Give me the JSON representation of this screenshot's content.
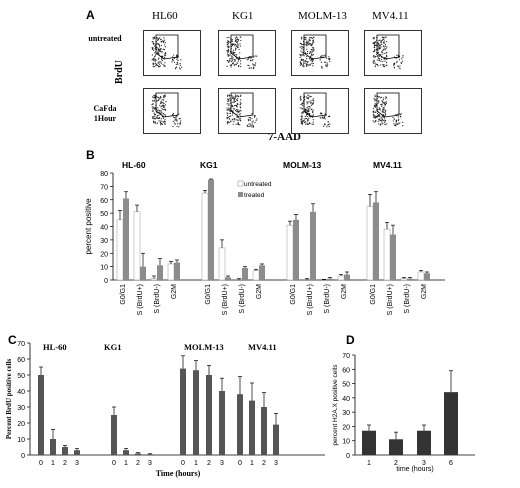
{
  "panelA": {
    "letter": "A",
    "columns": [
      "HL60",
      "KG1",
      "MOLM-13",
      "MV4.11"
    ],
    "rows": [
      [
        "untreated"
      ],
      [
        "CaFda",
        "1Hour"
      ]
    ],
    "ylabel": "BrdU",
    "xlabel": "7-AAD"
  },
  "panelB_letter": "B",
  "panelC_letter": "C",
  "panelD_letter": "D",
  "chart_data": [
    {
      "type": "bar",
      "panel": "B",
      "ylabel": "percent positive",
      "ylim": [
        0,
        80
      ],
      "yticks": [
        0,
        10,
        20,
        30,
        40,
        50,
        60,
        70,
        80
      ],
      "groups": [
        "HL-60",
        "KG1",
        "MOLM-13",
        "MV4.11"
      ],
      "categories": [
        "G0/G1",
        "S (BrdU+)",
        "S (BrdU-)",
        "G2M"
      ],
      "legend": [
        "untreated",
        "treated"
      ],
      "legend_position": "top-center",
      "colors": {
        "untreated": "#ffffff",
        "treated": "#8c8c8c"
      },
      "series": [
        {
          "name": "untreated",
          "values": [
            [
              45,
              51,
              1,
              12
            ],
            [
              65,
              24,
              0,
              7
            ],
            [
              41,
              0,
              0,
              3
            ],
            [
              55,
              38,
              1,
              6
            ]
          ],
          "errors": [
            [
              7,
              5,
              2,
              2
            ],
            [
              2,
              6,
              1,
              1
            ],
            [
              3,
              1,
              0.5,
              1
            ],
            [
              9,
              5,
              1,
              1
            ]
          ]
        },
        {
          "name": "treated",
          "values": [
            [
              61,
              10,
              11,
              13
            ],
            [
              75,
              2,
              9,
              11
            ],
            [
              45,
              51,
              1,
              4
            ],
            [
              58,
              34,
              1,
              5
            ]
          ],
          "errors": [
            [
              5,
              10,
              5,
              2
            ],
            [
              0.5,
              1,
              1,
              1
            ],
            [
              4,
              6,
              1,
              2
            ],
            [
              8,
              7,
              1,
              1
            ]
          ]
        }
      ]
    },
    {
      "type": "bar",
      "panel": "C",
      "ylabel": "Percent BrdU positive cells",
      "xlabel": "Time (hours)",
      "ylim": [
        0,
        70
      ],
      "yticks": [
        0,
        10,
        20,
        30,
        40,
        50,
        60,
        70
      ],
      "groups": [
        "HL-60",
        "KG1",
        "MOLM-13",
        "MV4.11"
      ],
      "categories": [
        "0",
        "1",
        "2",
        "3"
      ],
      "color": "#555555",
      "values": [
        [
          50,
          10,
          5,
          3
        ],
        [
          25,
          3,
          1,
          0.5
        ],
        [
          54,
          53,
          50,
          40
        ],
        [
          38,
          34,
          30,
          19
        ]
      ],
      "errors": [
        [
          5,
          6,
          1,
          1
        ],
        [
          5,
          1,
          0.5,
          0.3
        ],
        [
          8,
          6,
          6,
          8
        ],
        [
          11,
          11,
          9,
          7
        ]
      ]
    },
    {
      "type": "bar",
      "panel": "D",
      "ylabel": "percent H2A.X positive cells",
      "xlabel": "time (hours)",
      "ylim": [
        0,
        70
      ],
      "yticks": [
        0,
        10,
        20,
        30,
        40,
        50,
        60,
        70
      ],
      "categories": [
        "1",
        "2",
        "3",
        "6"
      ],
      "color": "#333333",
      "values": [
        17,
        11,
        17,
        44
      ],
      "errors": [
        4,
        5,
        4,
        15
      ]
    }
  ]
}
